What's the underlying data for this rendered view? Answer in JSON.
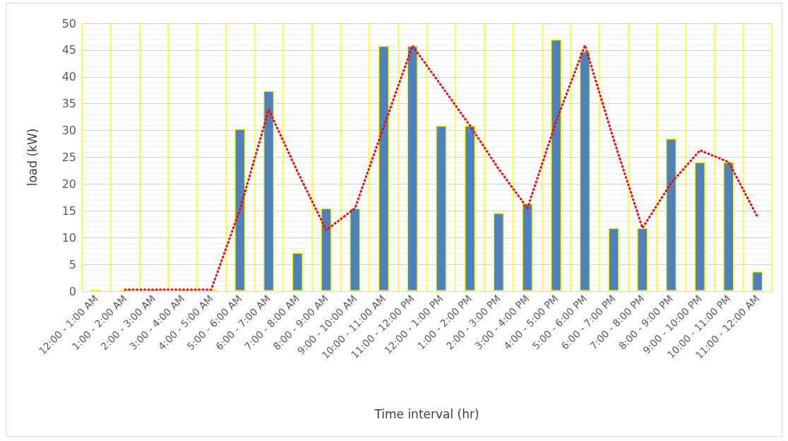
{
  "chart_data": {
    "type": "bar",
    "xlabel": "Time interval (hr)",
    "ylabel": "load (kW)",
    "categories": [
      "12:00 - 1:00 AM",
      "1:00 - 2:00 AM",
      "2:00 - 3:00 AM",
      "3:00 - 4:00 AM",
      "4:00 - 5:00 AM",
      "5:00 - 6:00 AM",
      "6:00 - 7:00 AM",
      "7:00 - 8:00 AM",
      "8:00 - 9:00 AM",
      "9:00 - 10:00 AM",
      "10:00 - 11:00 AM",
      "11:00 - 12:00 PM",
      "12:00 - 1:00 PM",
      "1:00 - 2:00 PM",
      "2:00 - 3:00 PM",
      "3:00 - 4:00 PM",
      "4:00 - 5:00 PM",
      "5:00 - 6:00 PM",
      "6:00 - 7:00 PM",
      "7:00 - 8:00 PM",
      "8:00 - 9:00 PM",
      "9:00 - 10:00 PM",
      "10:00 - 11:00 PM",
      "11:00 - 12:00 AM"
    ],
    "series": [
      {
        "color": "#4f81bd",
        "values": [
          0.3,
          0.3,
          0.3,
          0.3,
          0.3,
          30.3,
          37.4,
          7.2,
          15.5,
          15.5,
          45.8,
          45.8,
          30.9,
          30.9,
          14.6,
          16.4,
          47.0,
          44.8,
          11.8,
          11.8,
          28.5,
          24.1,
          24.1,
          3.7
        ]
      },
      {
        "type": "line",
        "color": "#ff0000",
        "line_style": "dotted",
        "marker": "none",
        "values": [
          null,
          0.3,
          0.3,
          0.3,
          0.3,
          15.3,
          33.9,
          22.3,
          11.4,
          15.5,
          30.7,
          45.8,
          38.4,
          30.9,
          22.8,
          15.5,
          31.7,
          45.9,
          28.3,
          11.8,
          20.2,
          26.3,
          24.1,
          13.9
        ]
      }
    ],
    "ylim": [
      0,
      50
    ],
    "yticks": [
      0,
      5,
      10,
      15,
      20,
      25,
      30,
      35,
      40,
      45,
      50
    ],
    "grid": true
  }
}
